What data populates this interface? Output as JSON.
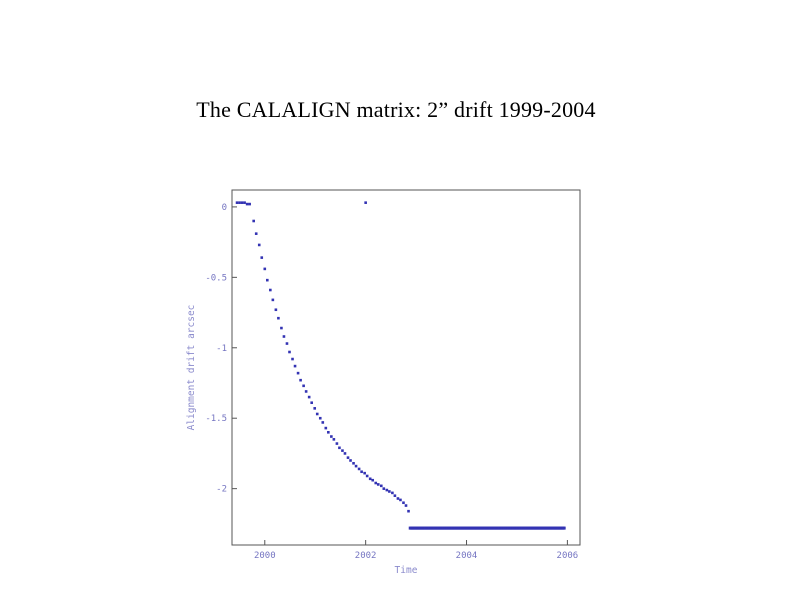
{
  "page": {
    "background": "#ffffff"
  },
  "title": "The CALALIGN matrix: 2” drift 1999-2004",
  "chart_data": {
    "type": "scatter",
    "title": "",
    "xlabel": "Time",
    "ylabel": "Alignment drift  arcsec",
    "xlim": [
      1999.35,
      2006.25
    ],
    "ylim": [
      -2.4,
      0.12
    ],
    "grid": false,
    "legend": "none",
    "x_ticks": [
      {
        "value": 2000,
        "label": "2000"
      },
      {
        "value": 2002,
        "label": "2002"
      },
      {
        "value": 2004,
        "label": "2004"
      },
      {
        "value": 2006,
        "label": "2006"
      }
    ],
    "y_ticks": [
      {
        "value": 0,
        "label": "0"
      },
      {
        "value": -0.5,
        "label": "-0.5"
      },
      {
        "value": -1,
        "label": "-1"
      },
      {
        "value": -1.5,
        "label": "-1.5"
      },
      {
        "value": -2,
        "label": "-2"
      }
    ],
    "marker_color": "#3333b3",
    "axis_text_color": "#7575c2",
    "axis_label_color": "#8a8acc",
    "frame_color": "#555555",
    "points": [
      [
        1999.45,
        0.03
      ],
      [
        1999.5,
        0.03
      ],
      [
        1999.55,
        0.03
      ],
      [
        1999.6,
        0.03
      ],
      [
        1999.65,
        0.02
      ],
      [
        1999.7,
        0.02
      ],
      [
        1999.78,
        -0.1
      ],
      [
        1999.83,
        -0.19
      ],
      [
        1999.89,
        -0.27
      ],
      [
        1999.94,
        -0.36
      ],
      [
        2000.0,
        -0.44
      ],
      [
        2000.05,
        -0.52
      ],
      [
        2000.11,
        -0.59
      ],
      [
        2000.16,
        -0.66
      ],
      [
        2000.22,
        -0.73
      ],
      [
        2000.27,
        -0.79
      ],
      [
        2000.33,
        -0.86
      ],
      [
        2000.38,
        -0.92
      ],
      [
        2000.44,
        -0.97
      ],
      [
        2000.49,
        -1.03
      ],
      [
        2000.55,
        -1.08
      ],
      [
        2000.6,
        -1.13
      ],
      [
        2000.66,
        -1.18
      ],
      [
        2000.71,
        -1.23
      ],
      [
        2000.77,
        -1.27
      ],
      [
        2000.82,
        -1.31
      ],
      [
        2000.88,
        -1.35
      ],
      [
        2000.93,
        -1.39
      ],
      [
        2000.99,
        -1.43
      ],
      [
        2001.04,
        -1.47
      ],
      [
        2001.1,
        -1.5
      ],
      [
        2001.15,
        -1.53
      ],
      [
        2001.21,
        -1.57
      ],
      [
        2001.26,
        -1.6
      ],
      [
        2001.32,
        -1.63
      ],
      [
        2001.37,
        -1.65
      ],
      [
        2001.43,
        -1.68
      ],
      [
        2001.48,
        -1.71
      ],
      [
        2001.54,
        -1.73
      ],
      [
        2001.59,
        -1.75
      ],
      [
        2001.65,
        -1.78
      ],
      [
        2001.7,
        -1.8
      ],
      [
        2001.76,
        -1.82
      ],
      [
        2001.81,
        -1.84
      ],
      [
        2001.87,
        -1.86
      ],
      [
        2001.92,
        -1.88
      ],
      [
        2001.98,
        -1.89
      ],
      [
        2002.03,
        -1.91
      ],
      [
        2002.09,
        -1.93
      ],
      [
        2002.14,
        -1.94
      ],
      [
        2002.2,
        -1.96
      ],
      [
        2002.25,
        -1.97
      ],
      [
        2002.31,
        -1.98
      ],
      [
        2002.36,
        -2.0
      ],
      [
        2002.42,
        -2.01
      ],
      [
        2002.47,
        -2.02
      ],
      [
        2002.53,
        -2.03
      ],
      [
        2002.58,
        -2.05
      ],
      [
        2002.64,
        -2.07
      ],
      [
        2002.69,
        -2.08
      ],
      [
        2002.75,
        -2.1
      ],
      [
        2002.8,
        -2.12
      ],
      [
        2002.85,
        -2.16
      ]
    ],
    "outliers": [
      [
        2002.0,
        0.03
      ]
    ],
    "flat_segment": {
      "x_start": 2002.88,
      "x_end": 2005.95,
      "y": -2.28,
      "point_spacing": 0.018,
      "note": "dense run of overlapping points forming a solid horizontal line"
    }
  }
}
